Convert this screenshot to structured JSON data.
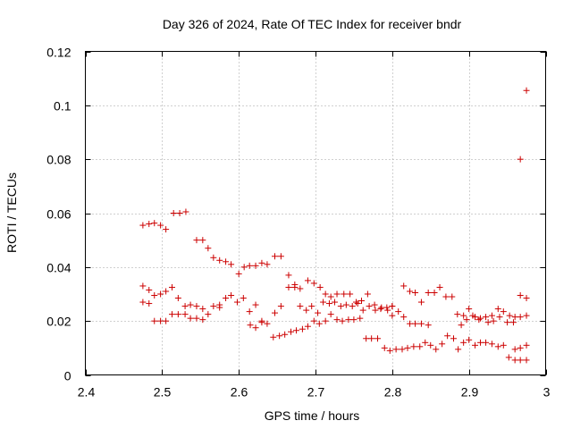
{
  "chart_data": {
    "type": "scatter",
    "title": "Day 326 of 2024, Rate Of TEC Index for receiver bndr",
    "xlabel": "GPS time / hours",
    "ylabel": "ROTI / TECUs",
    "xlim": [
      2.4,
      3.0
    ],
    "ylim": [
      0,
      0.12
    ],
    "x_ticks": [
      "2.4",
      "2.5",
      "2.6",
      "2.7",
      "2.8",
      "2.9",
      "3"
    ],
    "y_ticks": [
      "0",
      "0.02",
      "0.04",
      "0.06",
      "0.08",
      "0.1",
      "0.12"
    ],
    "x_tick_values": [
      2.4,
      2.5,
      2.6,
      2.7,
      2.8,
      2.9,
      3.0
    ],
    "y_tick_values": [
      0,
      0.02,
      0.04,
      0.06,
      0.08,
      0.1,
      0.12
    ],
    "grid": true,
    "marker": "+",
    "marker_color": "#cc0000",
    "series": [
      {
        "points": [
          [
            2.475,
            0.0555
          ],
          [
            2.483,
            0.056
          ],
          [
            2.49,
            0.0563
          ],
          [
            2.498,
            0.0555
          ],
          [
            2.505,
            0.054
          ],
          [
            2.515,
            0.06
          ],
          [
            2.523,
            0.06
          ],
          [
            2.531,
            0.0605
          ],
          [
            2.545,
            0.05
          ],
          [
            2.553,
            0.05
          ],
          [
            2.56,
            0.047
          ],
          [
            2.567,
            0.0435
          ],
          [
            2.575,
            0.0425
          ],
          [
            2.583,
            0.042
          ],
          [
            2.59,
            0.041
          ],
          [
            2.6,
            0.0375
          ],
          [
            2.607,
            0.04
          ],
          [
            2.614,
            0.0405
          ],
          [
            2.622,
            0.0405
          ],
          [
            2.63,
            0.0415
          ],
          [
            2.637,
            0.041
          ],
          [
            2.647,
            0.044
          ],
          [
            2.655,
            0.044
          ],
          [
            2.665,
            0.037
          ],
          [
            2.673,
            0.0335
          ],
          [
            2.68,
            0.032
          ],
          [
            2.69,
            0.035
          ],
          [
            2.698,
            0.034
          ],
          [
            2.706,
            0.0325
          ],
          [
            2.713,
            0.03
          ],
          [
            2.72,
            0.029
          ],
          [
            2.728,
            0.03
          ],
          [
            2.737,
            0.03
          ],
          [
            2.745,
            0.03
          ],
          [
            2.753,
            0.027
          ],
          [
            2.76,
            0.0275
          ],
          [
            2.768,
            0.03
          ],
          [
            2.777,
            0.026
          ],
          [
            2.785,
            0.0245
          ],
          [
            2.793,
            0.025
          ],
          [
            2.8,
            0.0255
          ],
          [
            2.808,
            0.0235
          ],
          [
            2.815,
            0.033
          ],
          [
            2.823,
            0.031
          ],
          [
            2.83,
            0.0305
          ],
          [
            2.838,
            0.027
          ],
          [
            2.847,
            0.0305
          ],
          [
            2.855,
            0.0305
          ],
          [
            2.862,
            0.0325
          ],
          [
            2.87,
            0.029
          ],
          [
            2.878,
            0.029
          ],
          [
            2.885,
            0.0225
          ],
          [
            2.893,
            0.022
          ],
          [
            2.9,
            0.0245
          ],
          [
            2.908,
            0.0215
          ],
          [
            2.915,
            0.021
          ],
          [
            2.922,
            0.0215
          ],
          [
            2.93,
            0.022
          ],
          [
            2.938,
            0.0245
          ],
          [
            2.945,
            0.0235
          ],
          [
            2.953,
            0.022
          ],
          [
            2.96,
            0.0215
          ],
          [
            2.967,
            0.0295
          ],
          [
            2.975,
            0.0285
          ],
          [
            2.475,
            0.033
          ],
          [
            2.483,
            0.0315
          ],
          [
            2.49,
            0.0295
          ],
          [
            2.498,
            0.03
          ],
          [
            2.505,
            0.031
          ],
          [
            2.513,
            0.0325
          ],
          [
            2.521,
            0.0285
          ],
          [
            2.53,
            0.0255
          ],
          [
            2.537,
            0.026
          ],
          [
            2.545,
            0.0255
          ],
          [
            2.553,
            0.0245
          ],
          [
            2.56,
            0.0225
          ],
          [
            2.567,
            0.0255
          ],
          [
            2.575,
            0.026
          ],
          [
            2.583,
            0.0285
          ],
          [
            2.59,
            0.0295
          ],
          [
            2.598,
            0.027
          ],
          [
            2.606,
            0.0285
          ],
          [
            2.614,
            0.0235
          ],
          [
            2.622,
            0.026
          ],
          [
            2.63,
            0.02
          ],
          [
            2.637,
            0.019
          ],
          [
            2.647,
            0.023
          ],
          [
            2.655,
            0.0255
          ],
          [
            2.665,
            0.0325
          ],
          [
            2.673,
            0.0325
          ],
          [
            2.68,
            0.0255
          ],
          [
            2.688,
            0.024
          ],
          [
            2.695,
            0.0255
          ],
          [
            2.703,
            0.023
          ],
          [
            2.71,
            0.027
          ],
          [
            2.718,
            0.0265
          ],
          [
            2.725,
            0.027
          ],
          [
            2.733,
            0.0255
          ],
          [
            2.74,
            0.026
          ],
          [
            2.748,
            0.0255
          ],
          [
            2.755,
            0.0265
          ],
          [
            2.762,
            0.024
          ],
          [
            2.77,
            0.0255
          ],
          [
            2.778,
            0.024
          ],
          [
            2.786,
            0.025
          ],
          [
            2.794,
            0.024
          ],
          [
            2.8,
            0.0255
          ],
          [
            2.475,
            0.027
          ],
          [
            2.483,
            0.0265
          ],
          [
            2.49,
            0.02
          ],
          [
            2.498,
            0.02
          ],
          [
            2.505,
            0.02
          ],
          [
            2.513,
            0.0225
          ],
          [
            2.521,
            0.0225
          ],
          [
            2.53,
            0.0225
          ],
          [
            2.537,
            0.021
          ],
          [
            2.545,
            0.021
          ],
          [
            2.553,
            0.0205
          ],
          [
            2.575,
            0.025
          ],
          [
            2.615,
            0.0185
          ],
          [
            2.622,
            0.0175
          ],
          [
            2.63,
            0.0195
          ],
          [
            2.645,
            0.014
          ],
          [
            2.653,
            0.0145
          ],
          [
            2.66,
            0.015
          ],
          [
            2.668,
            0.016
          ],
          [
            2.675,
            0.0165
          ],
          [
            2.683,
            0.017
          ],
          [
            2.69,
            0.018
          ],
          [
            2.698,
            0.02
          ],
          [
            2.705,
            0.019
          ],
          [
            2.713,
            0.02
          ],
          [
            2.72,
            0.0225
          ],
          [
            2.728,
            0.0205
          ],
          [
            2.735,
            0.02
          ],
          [
            2.743,
            0.0205
          ],
          [
            2.75,
            0.0205
          ],
          [
            2.758,
            0.021
          ],
          [
            2.766,
            0.0135
          ],
          [
            2.773,
            0.0135
          ],
          [
            2.781,
            0.0135
          ],
          [
            2.79,
            0.01
          ],
          [
            2.797,
            0.009
          ],
          [
            2.805,
            0.0095
          ],
          [
            2.813,
            0.0095
          ],
          [
            2.82,
            0.01
          ],
          [
            2.828,
            0.0105
          ],
          [
            2.836,
            0.0105
          ],
          [
            2.843,
            0.012
          ],
          [
            2.85,
            0.011
          ],
          [
            2.857,
            0.0095
          ],
          [
            2.865,
            0.0115
          ],
          [
            2.872,
            0.0145
          ],
          [
            2.88,
            0.0135
          ],
          [
            2.886,
            0.0095
          ],
          [
            2.893,
            0.012
          ],
          [
            2.9,
            0.013
          ],
          [
            2.908,
            0.011
          ],
          [
            2.915,
            0.012
          ],
          [
            2.922,
            0.012
          ],
          [
            2.93,
            0.0115
          ],
          [
            2.938,
            0.0105
          ],
          [
            2.945,
            0.011
          ],
          [
            2.952,
            0.0065
          ],
          [
            2.96,
            0.0055
          ],
          [
            2.967,
            0.0055
          ],
          [
            2.975,
            0.0055
          ],
          [
            2.96,
            0.0095
          ],
          [
            2.967,
            0.01
          ],
          [
            2.975,
            0.011
          ],
          [
            2.815,
            0.0215
          ],
          [
            2.823,
            0.019
          ],
          [
            2.83,
            0.019
          ],
          [
            2.838,
            0.019
          ],
          [
            2.847,
            0.0185
          ],
          [
            2.89,
            0.0185
          ],
          [
            2.897,
            0.0205
          ],
          [
            2.905,
            0.022
          ],
          [
            2.913,
            0.0205
          ],
          [
            2.925,
            0.0195
          ],
          [
            2.932,
            0.02
          ],
          [
            2.94,
            0.0215
          ],
          [
            2.95,
            0.0195
          ],
          [
            2.958,
            0.0195
          ],
          [
            2.967,
            0.0215
          ],
          [
            2.975,
            0.022
          ],
          [
            2.967,
            0.08
          ],
          [
            2.975,
            0.1055
          ],
          [
            2.8,
            0.022
          ]
        ]
      }
    ]
  }
}
